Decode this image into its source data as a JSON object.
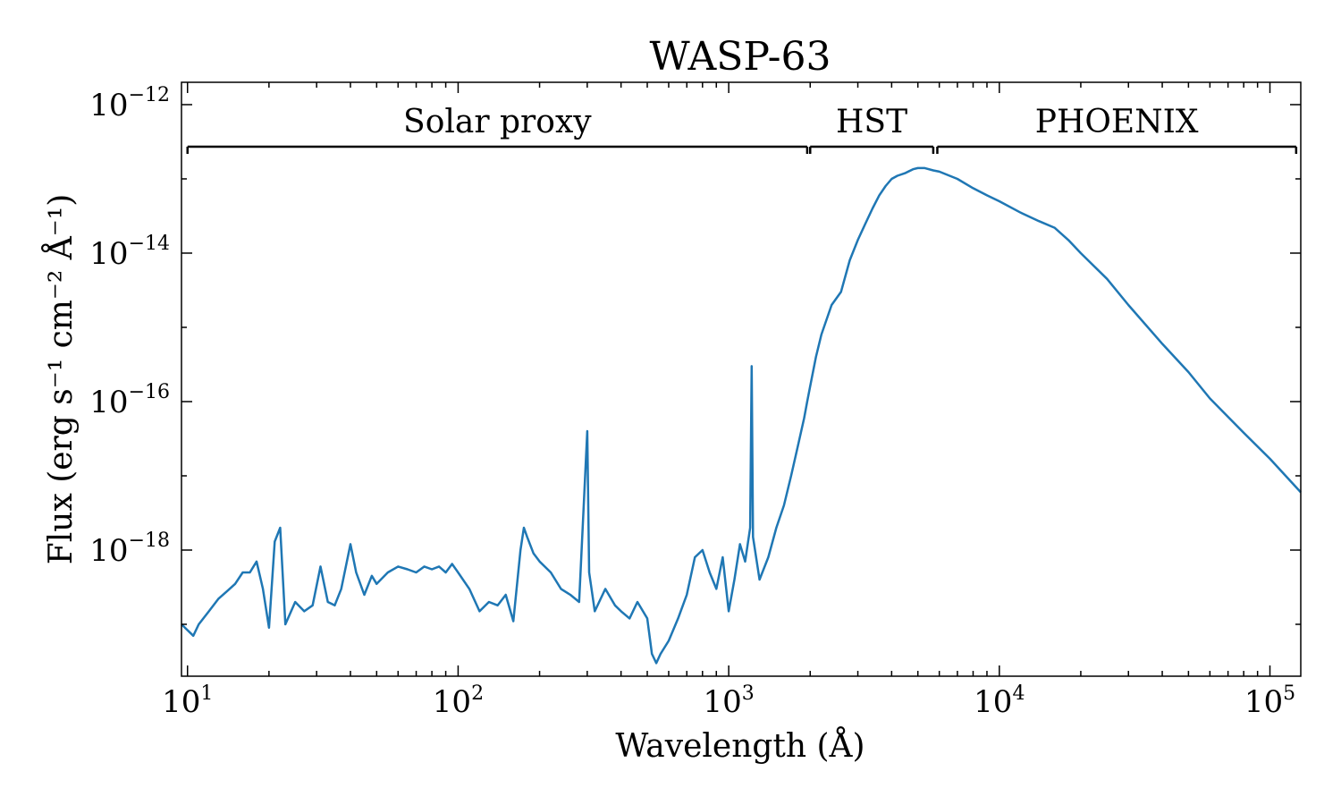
{
  "chart_data": {
    "type": "line",
    "title": "WASP-63",
    "xlabel": "Wavelength (Å)",
    "ylabel": "Flux (erg s⁻¹ cm⁻² Å⁻¹)",
    "xscale": "log",
    "yscale": "log",
    "xlim": [
      9.5,
      130000
    ],
    "ylim": [
      2e-20,
      2e-12
    ],
    "grid": false,
    "x_ticks": [
      {
        "value": 10,
        "base": "10",
        "exp": "1"
      },
      {
        "value": 100,
        "base": "10",
        "exp": "2"
      },
      {
        "value": 1000,
        "base": "10",
        "exp": "3"
      },
      {
        "value": 10000,
        "base": "10",
        "exp": "4"
      },
      {
        "value": 100000,
        "base": "10",
        "exp": "5"
      }
    ],
    "y_ticks": [
      {
        "value": 1e-12,
        "base": "10",
        "exp": "−12"
      },
      {
        "value": 1e-14,
        "base": "10",
        "exp": "−14"
      },
      {
        "value": 1e-16,
        "base": "10",
        "exp": "−16"
      },
      {
        "value": 1e-18,
        "base": "10",
        "exp": "−18"
      }
    ],
    "regions": [
      {
        "label": "Solar proxy",
        "x_start": 10,
        "x_end": 1950
      },
      {
        "label": "HST",
        "x_start": 2000,
        "x_end": 5700
      },
      {
        "label": "PHOENIX",
        "x_start": 5900,
        "x_end": 125000
      }
    ],
    "series": [
      {
        "color": "#1f77b4",
        "x": [
          9.5,
          10.5,
          11,
          12,
          13,
          14,
          15,
          16,
          17,
          18,
          19,
          20,
          21,
          22,
          23,
          25,
          27,
          29,
          31,
          33,
          35,
          37,
          40,
          42,
          45,
          48,
          50,
          55,
          60,
          65,
          70,
          75,
          80,
          85,
          90,
          95,
          100,
          110,
          120,
          130,
          140,
          150,
          160,
          170,
          175,
          180,
          190,
          200,
          220,
          240,
          260,
          280,
          300,
          305,
          320,
          350,
          380,
          400,
          430,
          460,
          500,
          520,
          540,
          560,
          600,
          650,
          700,
          750,
          800,
          850,
          900,
          950,
          1000,
          1050,
          1100,
          1150,
          1200,
          1216,
          1230,
          1300,
          1400,
          1500,
          1600,
          1700,
          1800,
          1900,
          1950,
          2000,
          2100,
          2200,
          2400,
          2600,
          2800,
          3000,
          3200,
          3400,
          3600,
          3800,
          4000,
          4200,
          4500,
          4800,
          5000,
          5300,
          5700,
          6000,
          7000,
          8000,
          9000,
          10000,
          12000,
          14000,
          16000,
          18000,
          20000,
          25000,
          30000,
          40000,
          50000,
          60000,
          80000,
          100000,
          130000
        ],
        "y": [
          1e-19,
          7e-20,
          1e-19,
          1.5e-19,
          2.2e-19,
          2.8e-19,
          3.5e-19,
          5e-19,
          5e-19,
          7e-19,
          3e-19,
          9e-20,
          1.3e-18,
          2e-18,
          1e-19,
          2e-19,
          1.5e-19,
          1.8e-19,
          6e-19,
          2e-19,
          1.8e-19,
          3e-19,
          1.2e-18,
          5e-19,
          2.5e-19,
          4.5e-19,
          3.5e-19,
          5e-19,
          6e-19,
          5.5e-19,
          5e-19,
          6e-19,
          5.5e-19,
          6e-19,
          5e-19,
          6.5e-19,
          5e-19,
          3e-19,
          1.5e-19,
          2e-19,
          1.8e-19,
          2.5e-19,
          1.1e-19,
          1e-18,
          2e-18,
          1.5e-18,
          9e-19,
          7e-19,
          5e-19,
          3e-19,
          2.5e-19,
          2e-19,
          4e-17,
          5e-19,
          1.5e-19,
          3e-19,
          1.8e-19,
          1.5e-19,
          1.2e-19,
          2e-19,
          1.2e-19,
          4e-20,
          3e-20,
          4e-20,
          6e-20,
          1.2e-19,
          2.5e-19,
          8e-19,
          1e-18,
          5e-19,
          3e-19,
          8e-19,
          1.5e-19,
          4e-19,
          1.2e-18,
          7e-19,
          2e-18,
          3e-16,
          1.5e-18,
          4e-19,
          8e-19,
          2e-18,
          4e-18,
          1e-17,
          2.5e-17,
          6e-17,
          1e-16,
          1.6e-16,
          4e-16,
          8e-16,
          2e-15,
          3e-15,
          8e-15,
          1.5e-14,
          2.5e-14,
          4e-14,
          6e-14,
          8e-14,
          1e-13,
          1.1e-13,
          1.2e-13,
          1.35e-13,
          1.4e-13,
          1.4e-13,
          1.3e-13,
          1.25e-13,
          1e-13,
          7.5e-14,
          6e-14,
          5e-14,
          3.5e-14,
          2.7e-14,
          2.2e-14,
          1.5e-14,
          1e-14,
          4.5e-15,
          2e-15,
          6e-16,
          2.5e-16,
          1.1e-16,
          3.8e-17,
          1.7e-17,
          6e-18
        ]
      }
    ]
  }
}
